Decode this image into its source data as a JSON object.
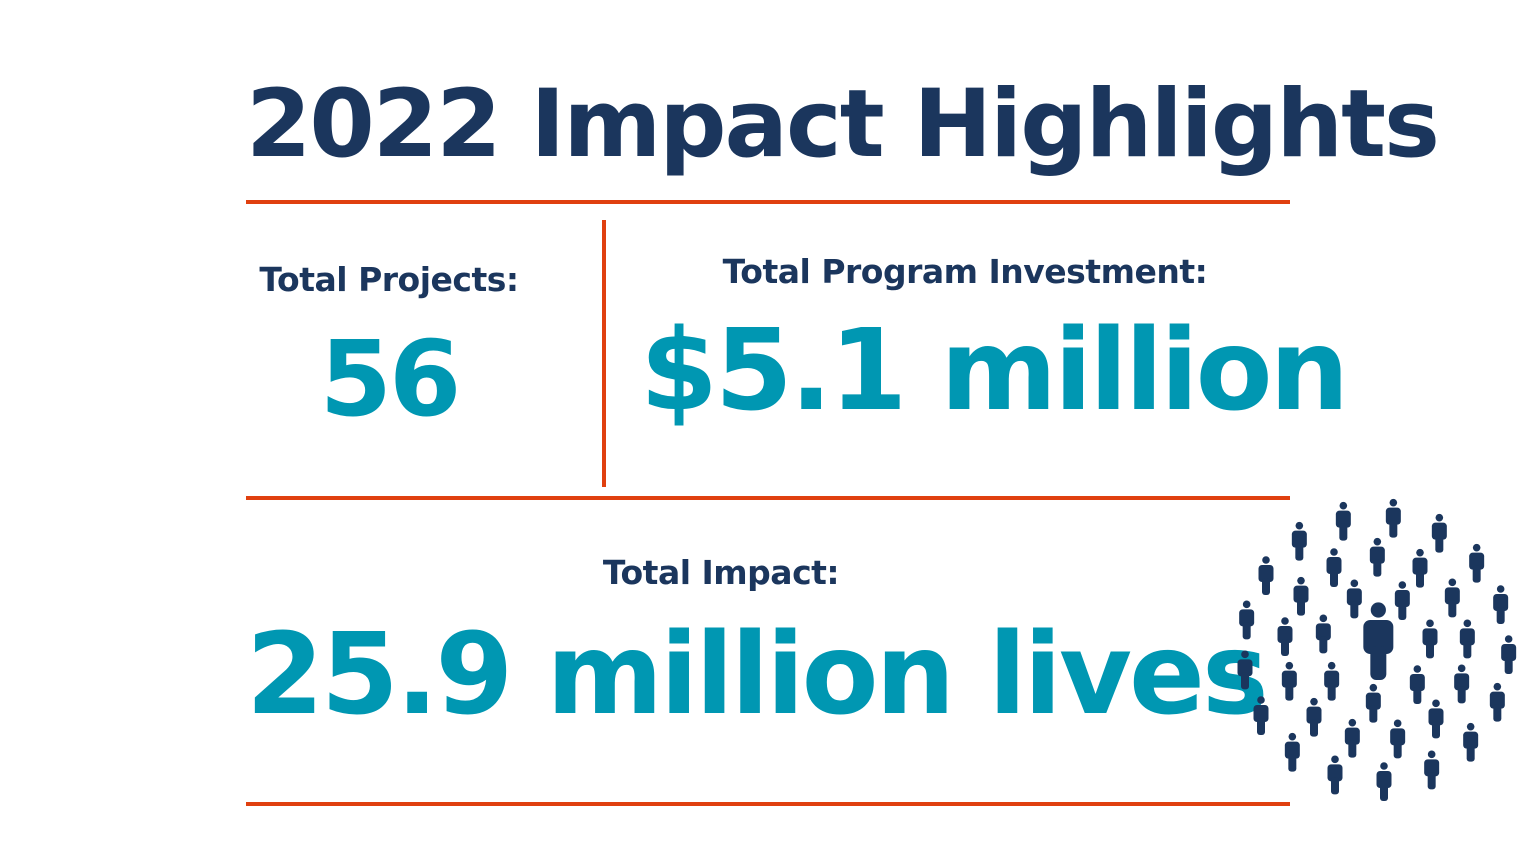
{
  "title": "2022 Impact Highlights",
  "projects": {
    "label": "Total Projects:",
    "value": "56"
  },
  "investment": {
    "label": "Total Program Investment:",
    "value": "$5.1 million"
  },
  "impact": {
    "label": "Total Impact:",
    "value": "25.9 million lives"
  },
  "illustration": {
    "icon": "crowd-of-people-icon",
    "color": "#1b365d"
  },
  "colors": {
    "navy": "#1b365d",
    "teal": "#0097b2",
    "accent": "#e0400f"
  }
}
